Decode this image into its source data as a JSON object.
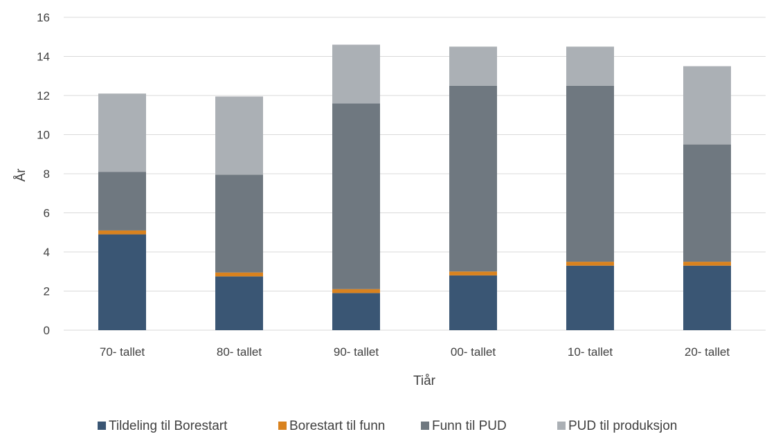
{
  "chart_data": {
    "type": "bar",
    "stacked": true,
    "categories": [
      "70- tallet",
      "80- tallet",
      "90- tallet",
      "00- tallet",
      "10- tallet",
      "20- tallet"
    ],
    "series": [
      {
        "name": "Tildeling til Borestart",
        "color": "#3A5674",
        "values": [
          4.9,
          2.75,
          1.9,
          2.8,
          3.3,
          3.3
        ]
      },
      {
        "name": "Borestart til funn",
        "color": "#D9821E",
        "values": [
          0.2,
          0.2,
          0.2,
          0.2,
          0.2,
          0.2
        ]
      },
      {
        "name": "Funn til PUD",
        "color": "#6F7880",
        "values": [
          3.0,
          5.0,
          9.5,
          9.5,
          9.0,
          6.0
        ]
      },
      {
        "name": "PUD til produksjon",
        "color": "#ABB0B5",
        "values": [
          4.0,
          4.0,
          3.0,
          2.0,
          2.0,
          4.0
        ]
      }
    ],
    "ylim": [
      0,
      16
    ],
    "yticks": [
      0,
      2,
      4,
      6,
      8,
      10,
      12,
      14,
      16
    ],
    "xlabel": "Tiår",
    "ylabel": "År",
    "grid": true,
    "legend": "bottom",
    "gridColor": "#D9D9D9"
  }
}
